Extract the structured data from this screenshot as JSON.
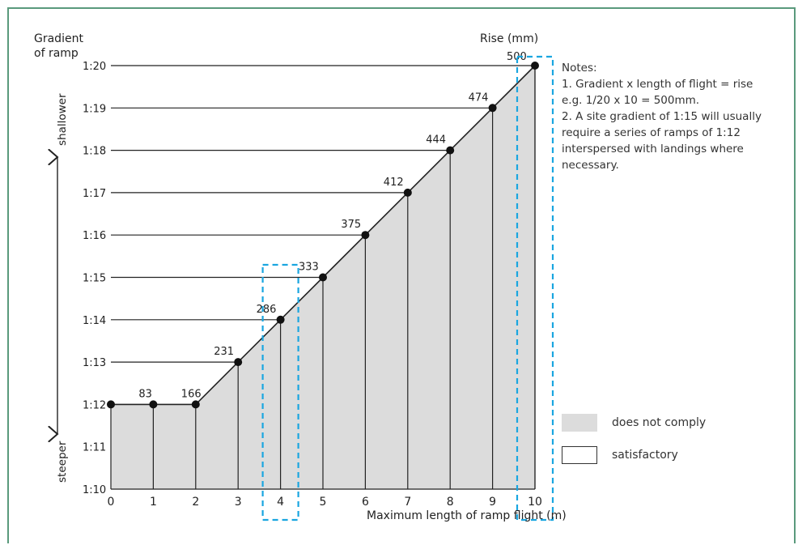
{
  "chart_data": {
    "type": "line",
    "ylabel_lines": [
      "Gradient",
      "of ramp"
    ],
    "xlabel": "Maximum length of ramp flight (m)",
    "rise_label": "Rise (mm)",
    "shallower_label": "shallower",
    "steeper_label": "steeper",
    "x_ticks": [
      "0",
      "1",
      "2",
      "3",
      "4",
      "5",
      "6",
      "7",
      "8",
      "9",
      "10"
    ],
    "y_ticks": [
      "1:10",
      "1:11",
      "1:12",
      "1:13",
      "1:14",
      "1:15",
      "1:16",
      "1:17",
      "1:18",
      "1:19",
      "1:20"
    ],
    "xlim": [
      0,
      10
    ],
    "ylim": [
      10,
      20
    ],
    "points": [
      {
        "x": 0,
        "gradient": 12,
        "rise": ""
      },
      {
        "x": 1,
        "gradient": 12,
        "rise": "83"
      },
      {
        "x": 2,
        "gradient": 12,
        "rise": "166"
      },
      {
        "x": 3,
        "gradient": 13,
        "rise": "231"
      },
      {
        "x": 4,
        "gradient": 14,
        "rise": "286"
      },
      {
        "x": 5,
        "gradient": 15,
        "rise": "333"
      },
      {
        "x": 6,
        "gradient": 16,
        "rise": "375"
      },
      {
        "x": 7,
        "gradient": 17,
        "rise": "412"
      },
      {
        "x": 8,
        "gradient": 18,
        "rise": "444"
      },
      {
        "x": 9,
        "gradient": 19,
        "rise": "474"
      },
      {
        "x": 10,
        "gradient": 20,
        "rise": "500"
      }
    ],
    "highlight_x": [
      4,
      10
    ],
    "colors": {
      "fill": "#dcdcdc",
      "line": "#222222",
      "highlight": "#1aa6e0"
    }
  },
  "notes": {
    "title": "Notes:",
    "line1": "1. Gradient x length of flight = rise",
    "line2": "e.g. 1/20 x 10 = 500mm.",
    "line3": "2. A site  gradient of 1:15 will usually",
    "line4": "require a series of ramps of 1:12",
    "line5": "interspersed with landings where",
    "line6": "necessary."
  },
  "legend": {
    "does_not_comply": "does not comply",
    "satisfactory": "satisfactory"
  }
}
